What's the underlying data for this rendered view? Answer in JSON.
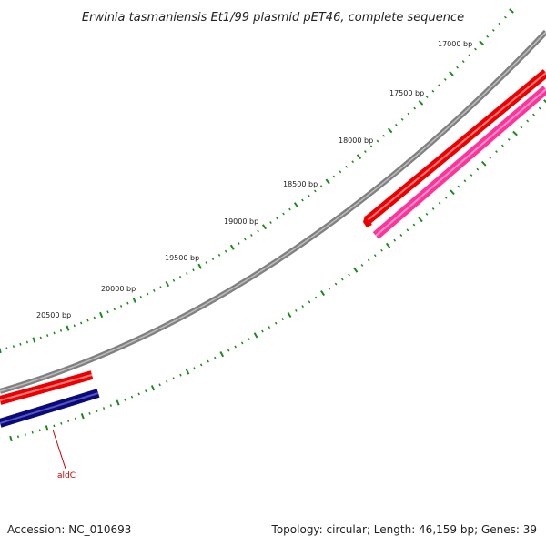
{
  "title": "Erwinia tasmaniensis Et1/99 plasmid pET46, complete sequence",
  "footer": {
    "accession": "Accession: NC_010693",
    "summary": "Topology: circular; Length: 46,159 bp; Genes: 39"
  },
  "map": {
    "backbone_color": "#808080",
    "tick_color": "#1a8a1a",
    "tick_labels": [
      "17000 bp",
      "17500 bp",
      "18000 bp",
      "18500 bp",
      "19000 bp",
      "19500 bp",
      "20000 bp",
      "20500 bp"
    ],
    "genes": [
      {
        "label": "",
        "strand": "forward",
        "color": "#ee0000"
      },
      {
        "label": "",
        "strand": "reverse",
        "color": "#ff3399"
      },
      {
        "label": "",
        "strand": "forward",
        "color": "#ee0000"
      },
      {
        "label": "aldC",
        "strand": "reverse",
        "color": "#0a0a7a",
        "label_color": "#cc0000"
      }
    ]
  }
}
